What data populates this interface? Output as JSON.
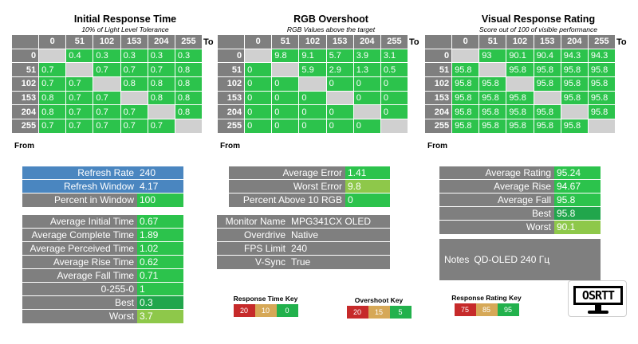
{
  "heatmaps": [
    {
      "title": "Initial Response Time",
      "subtitle": "10% of Light Level Tolerance",
      "cols": [
        "0",
        "51",
        "102",
        "153",
        "204",
        "255"
      ],
      "rows": [
        {
          "h": "0",
          "c": [
            "",
            "0.4",
            "0.3",
            "0.3",
            "0.3",
            "0.3"
          ]
        },
        {
          "h": "51",
          "c": [
            "0.7",
            "",
            "0.7",
            "0.7",
            "0.7",
            "0.8"
          ]
        },
        {
          "h": "102",
          "c": [
            "0.7",
            "0.7",
            "",
            "0.8",
            "0.8",
            "0.8"
          ]
        },
        {
          "h": "153",
          "c": [
            "0.8",
            "0.7",
            "0.7",
            "",
            "0.8",
            "0.8"
          ]
        },
        {
          "h": "204",
          "c": [
            "0.8",
            "0.7",
            "0.7",
            "0.7",
            "",
            "0.8"
          ]
        },
        {
          "h": "255",
          "c": [
            "0.7",
            "0.7",
            "0.7",
            "0.7",
            "0.7",
            ""
          ]
        }
      ],
      "to": "To",
      "from": "From"
    },
    {
      "title": "RGB Overshoot",
      "subtitle": "RGB Values above the target",
      "cols": [
        "0",
        "51",
        "102",
        "153",
        "204",
        "255"
      ],
      "rows": [
        {
          "h": "0",
          "c": [
            "",
            "9.8",
            "9.1",
            "5.7",
            "3.9",
            "3.1"
          ]
        },
        {
          "h": "51",
          "c": [
            "0",
            "",
            "5.9",
            "2.9",
            "1.3",
            "0.5"
          ]
        },
        {
          "h": "102",
          "c": [
            "0",
            "0",
            "",
            "0",
            "0",
            "0"
          ]
        },
        {
          "h": "153",
          "c": [
            "0",
            "0",
            "0",
            "",
            "0",
            "0"
          ]
        },
        {
          "h": "204",
          "c": [
            "0",
            "0",
            "0",
            "0",
            "",
            "0"
          ]
        },
        {
          "h": "255",
          "c": [
            "0",
            "0",
            "0",
            "0",
            "0",
            ""
          ]
        }
      ],
      "to": "To",
      "from": "From"
    },
    {
      "title": "Visual Response Rating",
      "subtitle": "Score out of 100 of visible performance",
      "cols": [
        "0",
        "51",
        "102",
        "153",
        "204",
        "255"
      ],
      "rows": [
        {
          "h": "0",
          "c": [
            "",
            "93",
            "90.1",
            "90.4",
            "94.3",
            "94.3"
          ]
        },
        {
          "h": "51",
          "c": [
            "95.8",
            "",
            "95.8",
            "95.8",
            "95.8",
            "95.8"
          ]
        },
        {
          "h": "102",
          "c": [
            "95.8",
            "95.8",
            "",
            "95.8",
            "95.8",
            "95.8"
          ]
        },
        {
          "h": "153",
          "c": [
            "95.8",
            "95.8",
            "95.8",
            "",
            "95.8",
            "95.8"
          ]
        },
        {
          "h": "204",
          "c": [
            "95.8",
            "95.8",
            "95.8",
            "95.8",
            "",
            "95.8"
          ]
        },
        {
          "h": "255",
          "c": [
            "95.8",
            "95.8",
            "95.8",
            "95.8",
            "95.8",
            ""
          ]
        }
      ],
      "to": "To",
      "from": "From"
    }
  ],
  "refresh": {
    "rate_label": "Refresh Rate",
    "rate": "240",
    "window_label": "Refresh Window",
    "window": "4.17",
    "percent_label": "Percent in Window",
    "percent": "100"
  },
  "times": [
    {
      "label": "Average Initial Time",
      "value": "0.67"
    },
    {
      "label": "Average Complete Time",
      "value": "1.89"
    },
    {
      "label": "Average Perceived Time",
      "value": "1.02"
    },
    {
      "label": "Average Rise Time",
      "value": "0.62"
    },
    {
      "label": "Average Fall Time",
      "value": "0.71"
    },
    {
      "label": "0-255-0",
      "value": "1"
    },
    {
      "label": "Best",
      "value": "0.3"
    },
    {
      "label": "Worst",
      "value": "3.7"
    }
  ],
  "errors": [
    {
      "label": "Average Error",
      "value": "1.41"
    },
    {
      "label": "Worst Error",
      "value": "9.8"
    },
    {
      "label": "Percent Above 10 RGB",
      "value": "0"
    }
  ],
  "monitor": [
    {
      "label": "Monitor Name",
      "value": "MPG341CX OLED"
    },
    {
      "label": "Overdrive",
      "value": "Native"
    },
    {
      "label": "FPS Limit",
      "value": "240"
    },
    {
      "label": "V-Sync",
      "value": "True"
    }
  ],
  "ratings": [
    {
      "label": "Average Rating",
      "value": "95.24"
    },
    {
      "label": "Average Rise",
      "value": "94.67"
    },
    {
      "label": "Average Fall",
      "value": "95.8"
    },
    {
      "label": "Best",
      "value": "95.8"
    },
    {
      "label": "Worst",
      "value": "90.1"
    }
  ],
  "notes": {
    "label": "Notes",
    "value": "QD-OLED 240 Гц"
  },
  "keys": [
    {
      "title": "Response Time Key",
      "values": [
        "20",
        "10",
        "0"
      ]
    },
    {
      "title": "Overshoot Key",
      "values": [
        "20",
        "15",
        "5"
      ]
    },
    {
      "title": "Response Rating Key",
      "values": [
        "75",
        "85",
        "95"
      ]
    }
  ],
  "logo_text": "OSRTT",
  "colors": {
    "green": "#2cc34c",
    "gray": "#7f7f7f",
    "blue": "#4a86c0",
    "red": "#c62a2a",
    "yellow": "#d6a857"
  }
}
